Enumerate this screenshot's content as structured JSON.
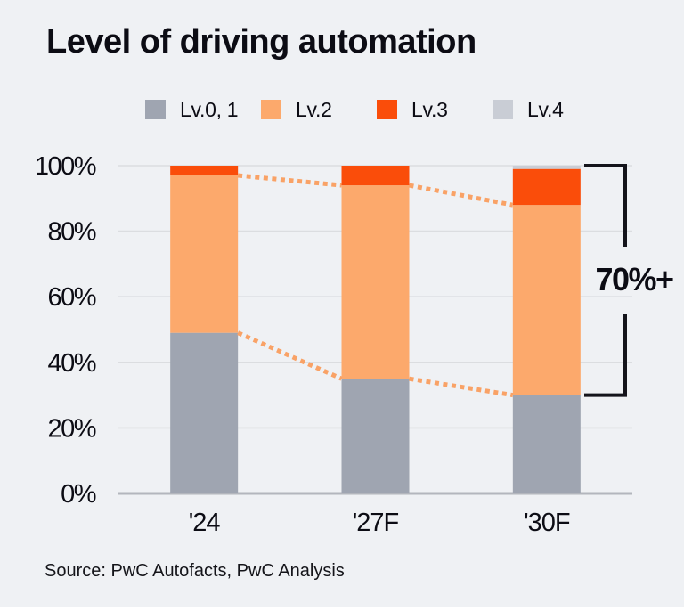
{
  "title": "Level of driving automation",
  "source": "Source: PwC Autofacts, PwC Analysis",
  "colors": {
    "background": "#EFF1F4",
    "lv01": "#9FA5B1",
    "lv2": "#FCA96C",
    "lv3": "#FA4D0A",
    "lv4": "#C9CDD5",
    "grid": "#DBDDE0",
    "axis": "#B3B6BD",
    "bracket": "#14141B",
    "dotted_line": "#F9A266",
    "text": "#0C0C14"
  },
  "chart_data": {
    "type": "bar",
    "stacked": true,
    "categories": [
      "'24",
      "'27F",
      "'30F"
    ],
    "series": [
      {
        "name": "Lv.0, 1",
        "color": "#9FA5B1",
        "values": [
          49,
          35,
          30
        ]
      },
      {
        "name": "Lv.2",
        "color": "#FCA96C",
        "values": [
          48,
          59,
          58
        ]
      },
      {
        "name": "Lv.3",
        "color": "#FA4D0A",
        "values": [
          3,
          6,
          11
        ]
      },
      {
        "name": "Lv.4",
        "color": "#C9CDD5",
        "values": [
          0,
          0,
          1
        ]
      }
    ],
    "ylim": [
      0,
      100
    ],
    "y_ticks": [
      {
        "label": "0%",
        "value": 0
      },
      {
        "label": "20%",
        "value": 20
      },
      {
        "label": "40%",
        "value": 40
      },
      {
        "label": "60%",
        "value": 60
      },
      {
        "label": "80%",
        "value": 80
      },
      {
        "label": "100%",
        "value": 100
      }
    ],
    "grid": true,
    "legend_position": "top",
    "connector_boundaries": [
      "after Lv.0, 1",
      "after Lv.2"
    ],
    "annotations": [
      {
        "text": "70%+"
      }
    ]
  }
}
